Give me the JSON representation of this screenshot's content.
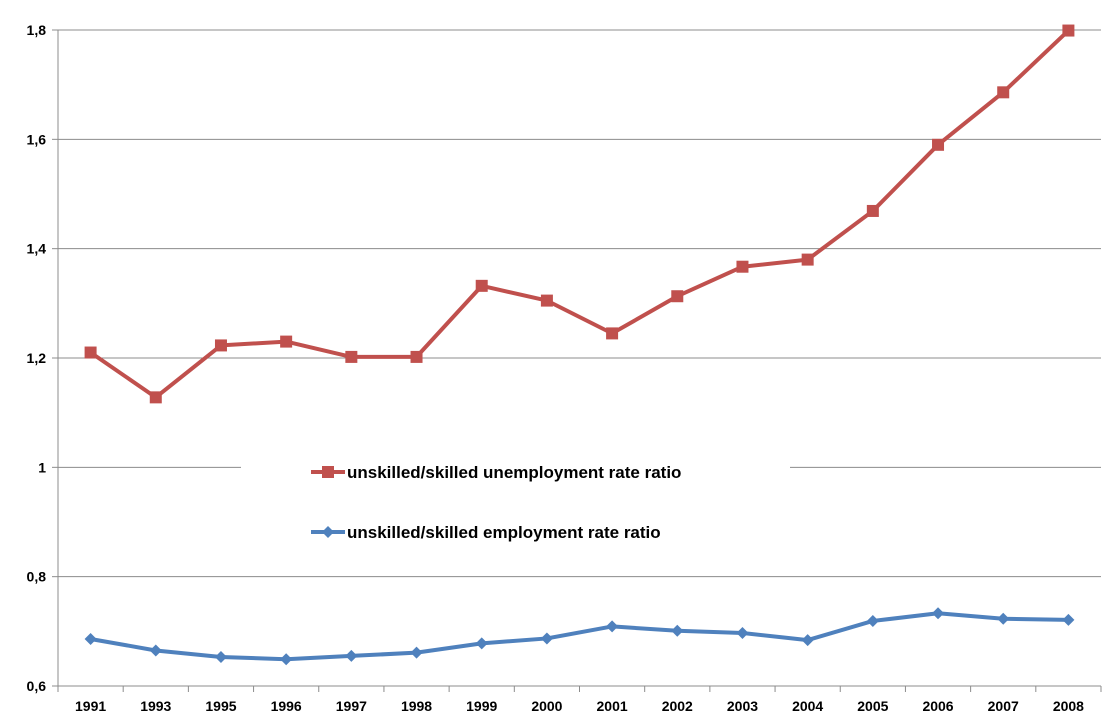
{
  "chart_data": {
    "type": "line",
    "title": "",
    "xlabel": "",
    "ylabel": "",
    "categories": [
      "1991",
      "1993",
      "1995",
      "1996",
      "1997",
      "1998",
      "1999",
      "2000",
      "2001",
      "2002",
      "2003",
      "2004",
      "2005",
      "2006",
      "2007",
      "2008"
    ],
    "ylim": [
      0.6,
      1.8
    ],
    "yticks": [
      "0,6",
      "0,8",
      "1",
      "1,2",
      "1,4",
      "1,6",
      "1,8"
    ],
    "ytick_values": [
      0.6,
      0.8,
      1.0,
      1.2,
      1.4,
      1.6,
      1.8
    ],
    "grid": true,
    "legend_position": "center",
    "series": [
      {
        "name": "unskilled/skilled unemployment rate ratio",
        "color": "#c0504d",
        "marker": "square",
        "values": [
          1.21,
          1.128,
          1.223,
          1.23,
          1.202,
          1.202,
          1.332,
          1.305,
          1.245,
          1.313,
          1.367,
          1.38,
          1.469,
          1.59,
          1.686,
          1.799
        ]
      },
      {
        "name": "unskilled/skilled employment rate ratio",
        "color": "#4f81bd",
        "marker": "diamond",
        "values": [
          0.686,
          0.665,
          0.653,
          0.649,
          0.655,
          0.661,
          0.678,
          0.687,
          0.709,
          0.701,
          0.697,
          0.684,
          0.719,
          0.733,
          0.723,
          0.721
        ]
      }
    ]
  }
}
